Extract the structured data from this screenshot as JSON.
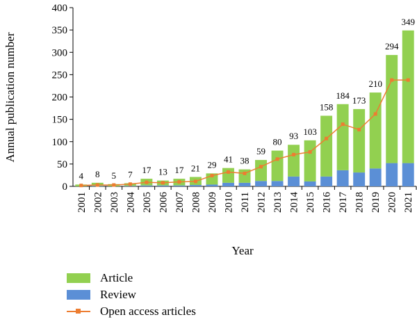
{
  "chart_data": {
    "type": "bar",
    "title": "",
    "xlabel": "Year",
    "ylabel": "Annual publication number",
    "ylim": [
      0,
      400
    ],
    "yticks": [
      0,
      50,
      100,
      150,
      200,
      250,
      300,
      350,
      400
    ],
    "categories": [
      "2001",
      "2002",
      "2003",
      "2004",
      "2005",
      "2006",
      "2007",
      "2008",
      "2009",
      "2010",
      "2011",
      "2012",
      "2013",
      "2014",
      "2015",
      "2016",
      "2017",
      "2018",
      "2019",
      "2020",
      "2021"
    ],
    "totals": [
      4,
      8,
      5,
      7,
      17,
      13,
      17,
      21,
      29,
      41,
      38,
      59,
      80,
      93,
      103,
      158,
      184,
      173,
      210,
      294,
      349
    ],
    "series": [
      {
        "name": "Article",
        "type": "bar-stacked",
        "color": "#92d050",
        "values": [
          4,
          7,
          5,
          6,
          15,
          11,
          15,
          18,
          25,
          33,
          30,
          47,
          68,
          71,
          92,
          136,
          148,
          142,
          170,
          242,
          297
        ]
      },
      {
        "name": "Review",
        "type": "bar-stacked",
        "color": "#5b8fd6",
        "values": [
          0,
          1,
          0,
          1,
          2,
          2,
          2,
          3,
          4,
          8,
          8,
          12,
          12,
          22,
          11,
          22,
          36,
          31,
          40,
          52,
          52
        ]
      },
      {
        "name": "Open access articles",
        "type": "line",
        "color": "#ed7d31",
        "values": [
          2,
          3,
          3,
          5,
          9,
          8,
          10,
          11,
          24,
          32,
          29,
          44,
          61,
          71,
          77,
          107,
          139,
          127,
          162,
          238,
          238
        ]
      }
    ],
    "legend_position": "bottom-left"
  }
}
